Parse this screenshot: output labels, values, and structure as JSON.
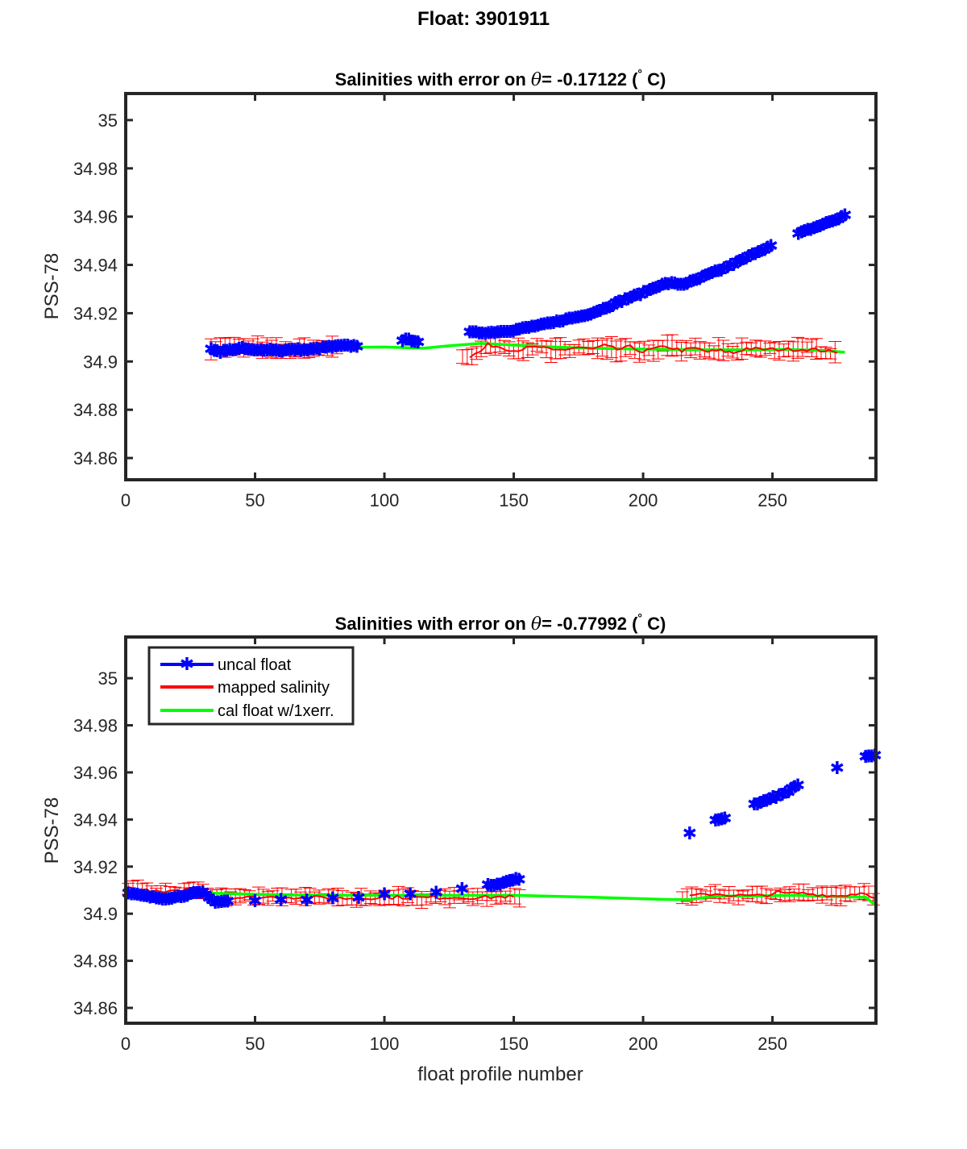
{
  "figure": {
    "title": "Float: 3901911"
  },
  "legend": {
    "uncal": "uncal float",
    "mapped": "mapped salinity",
    "cal": "cal float w/1xerr."
  },
  "colors": {
    "uncal": "#0000ff",
    "mapped": "#ff0000",
    "cal": "#00ff00",
    "axis": "#262626"
  },
  "chart_data": [
    {
      "type": "line",
      "title_prefix": "Salinities with error on ",
      "title_theta": "θ",
      "title_value": "= -0.17122 (",
      "title_degree": "°",
      "title_suffix": " C)",
      "xlabel": "",
      "ylabel": "PSS-78",
      "xlim": [
        0,
        290
      ],
      "ylim": [
        34.851,
        35.011
      ],
      "xticks": [
        "0",
        "50",
        "100",
        "150",
        "200",
        "250"
      ],
      "yticks": [
        "34.86",
        "34.88",
        "34.9",
        "34.92",
        "34.94",
        "34.96",
        "34.98",
        "35"
      ],
      "series": [
        {
          "name": "uncal float",
          "points": [
            [
              33,
              34.9055
            ],
            [
              36,
              34.904
            ],
            [
              40,
              34.9048
            ],
            [
              45,
              34.9055
            ],
            [
              50,
              34.9045
            ],
            [
              55,
              34.9052
            ],
            [
              60,
              34.9045
            ],
            [
              65,
              34.905
            ],
            [
              70,
              34.9048
            ],
            [
              75,
              34.9055
            ],
            [
              78,
              34.906
            ],
            [
              85,
              34.9065
            ],
            [
              90,
              34.9065
            ],
            [
              107,
              34.909
            ],
            [
              110,
              34.909
            ],
            [
              114,
              34.908
            ],
            [
              133,
              34.912
            ],
            [
              140,
              34.912
            ],
            [
              145,
              34.9125
            ],
            [
              150,
              34.913
            ],
            [
              155,
              34.914
            ],
            [
              160,
              34.915
            ],
            [
              165,
              34.916
            ],
            [
              170,
              34.9175
            ],
            [
              175,
              34.9185
            ],
            [
              180,
              34.92
            ],
            [
              185,
              34.922
            ],
            [
              190,
              34.9245
            ],
            [
              195,
              34.9265
            ],
            [
              200,
              34.9285
            ],
            [
              205,
              34.931
            ],
            [
              210,
              34.9325
            ],
            [
              215,
              34.932
            ],
            [
              220,
              34.9335
            ],
            [
              225,
              34.936
            ],
            [
              230,
              34.938
            ],
            [
              235,
              34.9405
            ],
            [
              240,
              34.943
            ],
            [
              245,
              34.946
            ],
            [
              250,
              34.948
            ],
            [
              260,
              34.953
            ],
            [
              265,
              34.955
            ],
            [
              270,
              34.957
            ],
            [
              275,
              34.959
            ],
            [
              278,
              34.9605
            ]
          ]
        },
        {
          "name": "mapped salinity",
          "points": [
            [
              33,
              34.906
            ],
            [
              40,
              34.906
            ],
            [
              50,
              34.9058
            ],
            [
              60,
              34.9045
            ],
            [
              70,
              34.9052
            ],
            [
              80,
              34.9058
            ],
            [
              133,
              34.902
            ],
            [
              137,
              34.904
            ],
            [
              140,
              34.907
            ],
            [
              145,
              34.906
            ],
            [
              150,
              34.9045
            ],
            [
              155,
              34.9055
            ],
            [
              160,
              34.906
            ],
            [
              165,
              34.9045
            ],
            [
              170,
              34.905
            ],
            [
              175,
              34.906
            ],
            [
              180,
              34.905
            ],
            [
              185,
              34.9065
            ],
            [
              190,
              34.905
            ],
            [
              195,
              34.906
            ],
            [
              200,
              34.904
            ],
            [
              205,
              34.9055
            ],
            [
              210,
              34.906
            ],
            [
              215,
              34.9045
            ],
            [
              220,
              34.9055
            ],
            [
              225,
              34.904
            ],
            [
              230,
              34.9045
            ],
            [
              235,
              34.9035
            ],
            [
              240,
              34.9055
            ],
            [
              245,
              34.905
            ],
            [
              250,
              34.905
            ],
            [
              260,
              34.905
            ],
            [
              265,
              34.905
            ],
            [
              270,
              34.9045
            ],
            [
              275,
              34.9035
            ]
          ]
        },
        {
          "name": "cal float w/1xerr.",
          "points": [
            [
              33,
              34.906
            ],
            [
              60,
              34.906
            ],
            [
              80,
              34.9058
            ],
            [
              100,
              34.906
            ],
            [
              115,
              34.9055
            ],
            [
              125,
              34.9065
            ],
            [
              137,
              34.9075
            ],
            [
              150,
              34.9068
            ],
            [
              165,
              34.906
            ],
            [
              180,
              34.9055
            ],
            [
              195,
              34.9052
            ],
            [
              210,
              34.905
            ],
            [
              225,
              34.9048
            ],
            [
              240,
              34.9048
            ],
            [
              255,
              34.905
            ],
            [
              270,
              34.9045
            ],
            [
              278,
              34.9038
            ]
          ]
        }
      ],
      "errorbar_sigma": 0.0035
    },
    {
      "type": "line",
      "title_prefix": "Salinities with error on ",
      "title_theta": "θ",
      "title_value": "= -0.77992 (",
      "title_degree": "°",
      "title_suffix": " C)",
      "xlabel": "float profile number",
      "ylabel": "PSS-78",
      "xlim": [
        0,
        290
      ],
      "ylim": [
        34.8535,
        35.0175
      ],
      "xticks": [
        "0",
        "50",
        "100",
        "150",
        "200",
        "250"
      ],
      "yticks": [
        "34.86",
        "34.88",
        "34.9",
        "34.92",
        "34.94",
        "34.96",
        "34.98",
        "35"
      ],
      "series": [
        {
          "name": "uncal float",
          "points": [
            [
              1,
              34.9085
            ],
            [
              5,
              34.908
            ],
            [
              10,
              34.907
            ],
            [
              15,
              34.9065
            ],
            [
              20,
              34.9072
            ],
            [
              25,
              34.9085
            ],
            [
              30,
              34.909
            ],
            [
              33,
              34.906
            ],
            [
              35,
              34.905
            ],
            [
              40,
              34.9055
            ],
            [
              50,
              34.9055
            ],
            [
              60,
              34.906
            ],
            [
              70,
              34.9058
            ],
            [
              80,
              34.9065
            ],
            [
              90,
              34.907
            ],
            [
              100,
              34.9082
            ],
            [
              110,
              34.9088
            ],
            [
              120,
              34.9095
            ],
            [
              130,
              34.9105
            ],
            [
              140,
              34.912
            ],
            [
              145,
              34.913
            ],
            [
              150,
              34.9145
            ],
            [
              152,
              34.915
            ],
            [
              218,
              34.934
            ],
            [
              228,
              34.9395
            ],
            [
              232,
              34.941
            ],
            [
              243,
              34.9465
            ],
            [
              248,
              34.9485
            ],
            [
              252,
              34.95
            ],
            [
              256,
              34.952
            ],
            [
              260,
              34.955
            ],
            [
              275,
              34.962
            ],
            [
              286,
              34.967
            ],
            [
              290,
              34.967
            ]
          ]
        },
        {
          "name": "mapped salinity",
          "points": [
            [
              1,
              34.911
            ],
            [
              10,
              34.9095
            ],
            [
              15,
              34.909
            ],
            [
              20,
              34.9095
            ],
            [
              25,
              34.911
            ],
            [
              30,
              34.9105
            ],
            [
              35,
              34.907
            ],
            [
              45,
              34.9068
            ],
            [
              55,
              34.907
            ],
            [
              65,
              34.907
            ],
            [
              75,
              34.9068
            ],
            [
              85,
              34.9065
            ],
            [
              95,
              34.9068
            ],
            [
              105,
              34.907
            ],
            [
              115,
              34.9068
            ],
            [
              125,
              34.907
            ],
            [
              135,
              34.9068
            ],
            [
              145,
              34.9072
            ],
            [
              150,
              34.9072
            ],
            [
              218,
              34.9075
            ],
            [
              228,
              34.9085
            ],
            [
              232,
              34.908
            ],
            [
              243,
              34.9075
            ],
            [
              248,
              34.908
            ],
            [
              252,
              34.909
            ],
            [
              256,
              34.9085
            ],
            [
              260,
              34.9088
            ],
            [
              275,
              34.9075
            ],
            [
              286,
              34.909
            ],
            [
              290,
              34.9065
            ]
          ]
        },
        {
          "name": "cal float w/1xerr.",
          "points": [
            [
              1,
              34.9085
            ],
            [
              30,
              34.9088
            ],
            [
              60,
              34.908
            ],
            [
              100,
              34.9078
            ],
            [
              140,
              34.9078
            ],
            [
              150,
              34.9078
            ],
            [
              180,
              34.907
            ],
            [
              210,
              34.906
            ],
            [
              218,
              34.906
            ],
            [
              228,
              34.9075
            ],
            [
              240,
              34.9075
            ],
            [
              260,
              34.9078
            ],
            [
              275,
              34.9072
            ],
            [
              286,
              34.907
            ],
            [
              290,
              34.9035
            ]
          ]
        }
      ],
      "errorbar_sigma": 0.003
    }
  ]
}
